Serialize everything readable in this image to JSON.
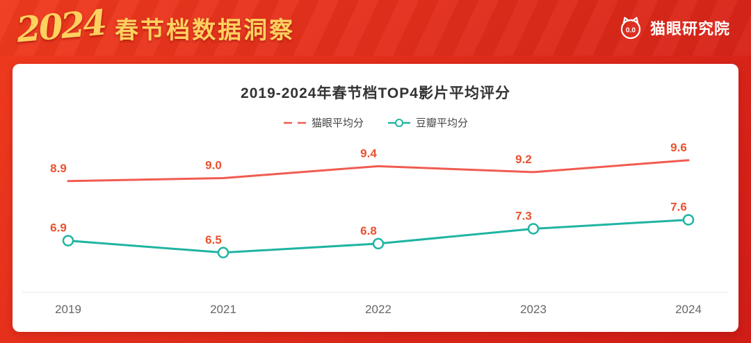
{
  "theme": {
    "bg_red_light": "#ef3a1e",
    "bg_red_dark": "#cf1c17",
    "gold": "#ffd15f",
    "card_bg": "#ffffff"
  },
  "header": {
    "year": "2024",
    "title": "春节档数据洞察",
    "brand": "猫眼研究院",
    "logo_eyes": "0.0"
  },
  "chart_data": {
    "type": "line",
    "title": "2019-2024年春节档TOP4影片平均评分",
    "categories": [
      "2019",
      "2021",
      "2022",
      "2023",
      "2024"
    ],
    "series": [
      {
        "name": "猫眼平均分",
        "values": [
          8.9,
          9.0,
          9.4,
          9.2,
          9.6
        ],
        "labels": [
          "8.9",
          "9.0",
          "9.4",
          "9.2",
          "9.6"
        ],
        "color": "#f15b50",
        "style": "solid",
        "marker": "none"
      },
      {
        "name": "豆瓣平均分",
        "values": [
          6.9,
          6.5,
          6.8,
          7.3,
          7.6
        ],
        "labels": [
          "6.9",
          "6.5",
          "6.8",
          "7.3",
          "7.6"
        ],
        "color": "#1fb4a2",
        "style": "solid",
        "marker": "circle"
      }
    ],
    "label_color": "#e8512e",
    "axis_color": "#e5e5e5",
    "tick_color": "#666666",
    "ylim": [
      5.4,
      10.2
    ],
    "grid": false,
    "legend_position": "top"
  }
}
